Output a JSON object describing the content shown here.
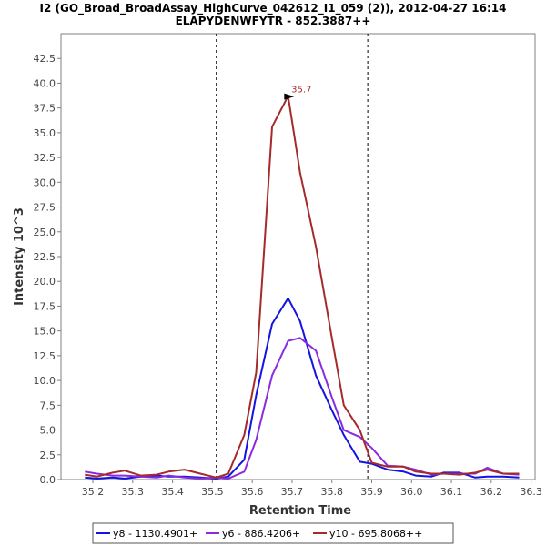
{
  "chart_data": {
    "type": "line",
    "title": "I2 (GO_Broad_BroadAssay_HighCurve_042612_I1_059 (2)), 2012-04-27 16:14",
    "subtitle": "ELAPYDENWFYTR - 852.3887++",
    "xlabel": "Retention Time",
    "ylabel": "Intensity 10^3",
    "xlim": [
      35.12,
      36.31
    ],
    "ylim": [
      0,
      45
    ],
    "xticks": [
      35.2,
      35.3,
      35.4,
      35.5,
      35.6,
      35.7,
      35.8,
      35.9,
      36.0,
      36.1,
      36.2,
      36.3
    ],
    "yticks": [
      0.0,
      2.5,
      5.0,
      7.5,
      10.0,
      12.5,
      15.0,
      17.5,
      20.0,
      22.5,
      25.0,
      27.5,
      30.0,
      32.5,
      35.0,
      37.5,
      40.0,
      42.5
    ],
    "vlines": [
      35.51,
      35.89
    ],
    "grid": false,
    "legend_position": "bottom",
    "series": [
      {
        "name": "y8 - 1130.4901+",
        "color": "#1414e0",
        "x": [
          35.18,
          35.21,
          35.25,
          35.28,
          35.32,
          35.36,
          35.39,
          35.43,
          35.47,
          35.51,
          35.54,
          35.58,
          35.61,
          35.65,
          35.69,
          35.72,
          35.76,
          35.8,
          35.83,
          35.87,
          35.9,
          35.94,
          35.98,
          36.01,
          36.05,
          36.08,
          36.12,
          36.16,
          36.19,
          36.23,
          36.27
        ],
        "y": [
          0.2,
          0.1,
          0.2,
          0.1,
          0.3,
          0.4,
          0.3,
          0.3,
          0.2,
          0.1,
          0.3,
          2.0,
          8.5,
          15.7,
          18.3,
          16.0,
          10.5,
          7.0,
          4.5,
          1.8,
          1.6,
          1.0,
          0.8,
          0.4,
          0.3,
          0.7,
          0.7,
          0.2,
          0.3,
          0.3,
          0.2
        ]
      },
      {
        "name": "y6 - 886.4206+",
        "color": "#8a2be2",
        "x": [
          35.18,
          35.21,
          35.25,
          35.28,
          35.32,
          35.36,
          35.39,
          35.43,
          35.47,
          35.51,
          35.54,
          35.58,
          35.61,
          35.65,
          35.69,
          35.72,
          35.76,
          35.8,
          35.83,
          35.87,
          35.9,
          35.94,
          35.98,
          36.01,
          36.05,
          36.08,
          36.12,
          36.16,
          36.19,
          36.23,
          36.27
        ],
        "y": [
          0.8,
          0.6,
          0.4,
          0.4,
          0.3,
          0.2,
          0.4,
          0.2,
          0.1,
          0.2,
          0.1,
          0.8,
          4.0,
          10.5,
          14.0,
          14.3,
          13.0,
          8.3,
          5.0,
          4.3,
          3.2,
          1.4,
          1.3,
          1.0,
          0.5,
          0.6,
          0.6,
          0.6,
          1.2,
          0.6,
          0.5
        ]
      },
      {
        "name": "y10 - 695.8068++",
        "color": "#a52a2a",
        "x": [
          35.18,
          35.21,
          35.25,
          35.28,
          35.32,
          35.36,
          35.39,
          35.43,
          35.47,
          35.51,
          35.54,
          35.58,
          35.61,
          35.65,
          35.69,
          35.72,
          35.76,
          35.8,
          35.83,
          35.87,
          35.9,
          35.94,
          35.98,
          36.01,
          36.05,
          36.08,
          36.12,
          36.16,
          36.19,
          36.23,
          36.27
        ],
        "y": [
          0.5,
          0.3,
          0.7,
          0.9,
          0.4,
          0.5,
          0.8,
          1.0,
          0.6,
          0.2,
          0.6,
          4.5,
          10.8,
          35.6,
          38.7,
          31.0,
          23.5,
          14.3,
          7.5,
          5.0,
          1.7,
          1.3,
          1.3,
          0.8,
          0.6,
          0.6,
          0.5,
          0.7,
          1.0,
          0.6,
          0.6
        ]
      }
    ],
    "annotation": {
      "text": "35.7",
      "x": 35.71,
      "y": 38.7,
      "color": "#a52a2a"
    }
  }
}
